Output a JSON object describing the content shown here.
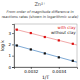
{
  "chart_data": {
    "type": "scatter",
    "title": "From order of magnitude difference in\nreactions rates (shown in logarithmic scale)",
    "annotations": [
      {
        "text": "Zn²⁺"
      }
    ],
    "x_label": "1/T",
    "y_label": "log k",
    "series": [
      {
        "type": "line",
        "color": "#6699cc",
        "x": [
          0.00308,
          0.00353
        ],
        "values": [
          1.958,
          0.428
        ]
      },
      {
        "type": "line",
        "color": "#ee9999",
        "x": [
          0.00308,
          0.00353
        ],
        "values": [
          3.363,
          1.9455
        ]
      },
      {
        "name": "without clay",
        "type": "scatter",
        "marker": "square",
        "color": "#111111",
        "x": [
          0.0031,
          0.0032,
          0.0033,
          0.0034,
          0.0035
        ],
        "values": [
          1.9,
          1.55,
          1.2,
          0.85,
          0.55
        ]
      },
      {
        "name": "with clay",
        "type": "scatter",
        "marker": "square",
        "color": "#dd1111",
        "x": [
          0.0031,
          0.0032,
          0.0033,
          0.0034,
          0.0035
        ],
        "values": [
          3.3,
          3.0,
          2.65,
          2.35,
          2.05
        ]
      }
    ],
    "xlim": [
      0.00308,
      0.00353
    ],
    "xticks": [
      0.0032,
      0.0034
    ],
    "ylim": [
      0.0,
      3.8
    ],
    "yticks": [
      0,
      1,
      2,
      3
    ],
    "legend": "upper right",
    "grid": false
  }
}
